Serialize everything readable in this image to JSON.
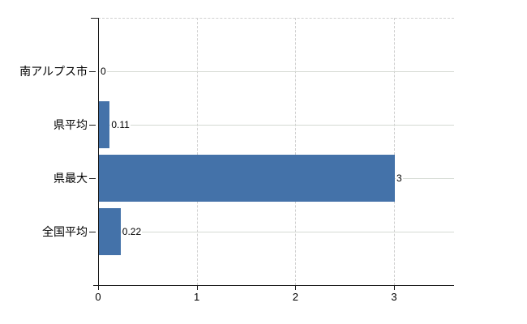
{
  "chart_data": {
    "type": "bar",
    "orientation": "horizontal",
    "title": "",
    "xlabel": "",
    "ylabel": "",
    "categories": [
      "南アルプス市",
      "県平均",
      "県最大",
      "全国平均"
    ],
    "values": [
      0,
      0.11,
      3,
      0.22
    ],
    "value_labels": [
      "0",
      "0.11",
      "3",
      "0.22"
    ],
    "x_ticks": [
      0,
      1,
      2,
      3
    ],
    "x_tick_labels": [
      "0",
      "1",
      "2",
      "3"
    ],
    "xlim": [
      0,
      3.6
    ],
    "grid": true,
    "legend": "none",
    "colors": {
      "bar": "#4472a9",
      "axis": "#1a1a1a",
      "gridline": "#d0d0d0",
      "category_line": "#d5dad3",
      "text": "#000000",
      "background": "#ffffff"
    }
  }
}
